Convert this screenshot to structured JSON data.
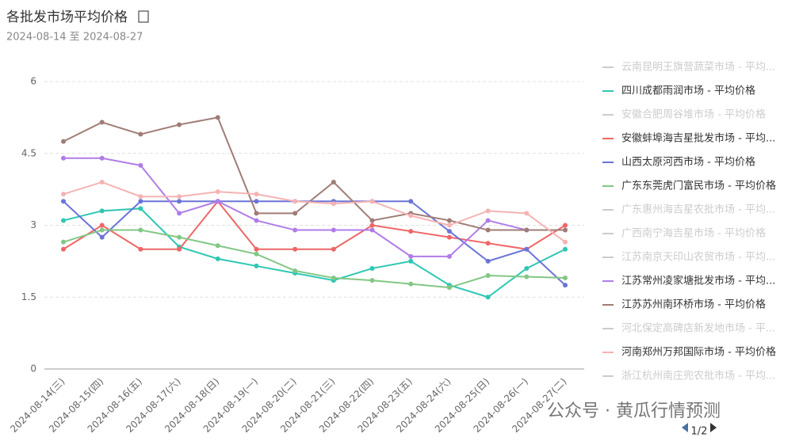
{
  "chart_data": {
    "type": "line",
    "title": "各批发市场平均价格",
    "subtitle": "2024-08-14 至 2024-08-27",
    "categories": [
      "2024-08-14(三)",
      "2024-08-15(四)",
      "2024-08-16(五)",
      "2024-08-17(六)",
      "2024-08-18(日)",
      "2024-08-19(一)",
      "2024-08-20(二)",
      "2024-08-21(三)",
      "2024-08-22(四)",
      "2024-08-23(五)",
      "2024-08-24(六)",
      "2024-08-25(日)",
      "2024-08-26(一)",
      "2024-08-27(二)"
    ],
    "ylim": [
      0,
      6
    ],
    "yticks": [
      0,
      1.5,
      3,
      4.5,
      6
    ],
    "grid": true,
    "legend": "right",
    "inactive_color": "#cccccc",
    "series": [
      {
        "name": "云南昆明王旗营蔬菜市场 - 平均...",
        "visible": false
      },
      {
        "name": "四川成都雨润市场 - 平均价格",
        "color": "#2ec7b3",
        "values": [
          3.1,
          3.3,
          3.35,
          2.55,
          2.3,
          2.15,
          2.0,
          1.85,
          2.1,
          2.25,
          1.75,
          1.5,
          2.1,
          2.5
        ]
      },
      {
        "name": "安徽合肥周谷堆市场 - 平均价格",
        "visible": false
      },
      {
        "name": "安徽蚌埠海吉星批发市场 - 平均...",
        "color": "#ee6666",
        "values": [
          2.5,
          3.0,
          2.5,
          2.5,
          3.5,
          2.5,
          2.5,
          2.5,
          3.0,
          2.875,
          2.75,
          2.625,
          2.5,
          3.0
        ]
      },
      {
        "name": "山西太原河西市场 - 平均价格",
        "color": "#6b74d8",
        "values": [
          3.5,
          2.75,
          3.5,
          3.5,
          3.5,
          3.5,
          3.5,
          3.5,
          3.5,
          3.5,
          2.875,
          2.25,
          2.5,
          1.75
        ]
      },
      {
        "name": "广东东莞虎门富民市场 - 平均价格",
        "color": "#82c785",
        "values": [
          2.65,
          2.9,
          2.9,
          2.75,
          2.575,
          2.4,
          2.05,
          1.9,
          1.85,
          1.775,
          1.7,
          1.95,
          1.925,
          1.9
        ]
      },
      {
        "name": "广东惠州海吉星农批市场 - 平均...",
        "visible": false
      },
      {
        "name": "广西南宁海吉星市场 - 平均价格",
        "visible": false
      },
      {
        "name": "江苏南京天印山农贸市场 - 平均...",
        "visible": false
      },
      {
        "name": "江苏常州凌家塘批发市场 - 平均...",
        "color": "#b07ce8",
        "values": [
          4.4,
          4.4,
          4.25,
          3.25,
          3.5,
          3.1,
          2.9,
          2.9,
          2.9,
          2.35,
          2.35,
          3.1,
          2.9,
          2.9
        ]
      },
      {
        "name": "江苏苏州南环桥市场 - 平均价格",
        "color": "#a07c76",
        "values": [
          4.75,
          5.15,
          4.9,
          5.1,
          5.25,
          3.25,
          3.25,
          3.9,
          3.1,
          3.25,
          3.1,
          2.9,
          2.9,
          2.9
        ]
      },
      {
        "name": "河北保定高碑店新发地市场 - 平...",
        "visible": false
      },
      {
        "name": "河南郑州万邦国际市场 - 平均价格",
        "color": "#f5b3b3",
        "values": [
          3.65,
          3.9,
          3.6,
          3.6,
          3.7,
          3.65,
          3.5,
          3.45,
          3.5,
          3.2,
          3.0,
          3.3,
          3.25,
          2.65
        ]
      },
      {
        "name": "浙江杭州南庄兜农批市场 - 平均...",
        "visible": false
      }
    ],
    "page": "1/2",
    "watermark": "公众号 · 黄瓜行情预测"
  }
}
